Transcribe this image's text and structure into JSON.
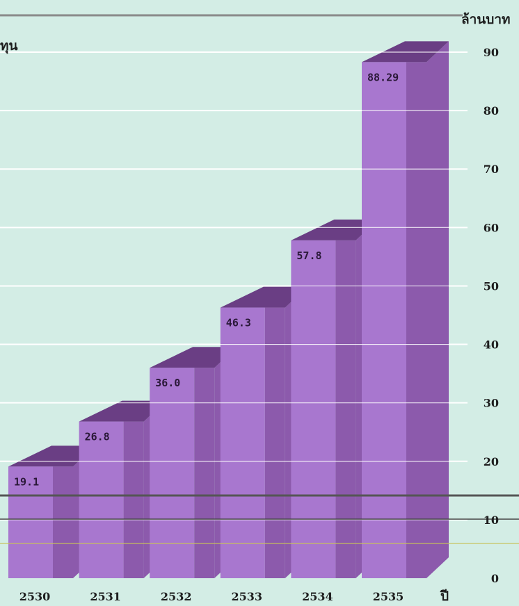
{
  "chart_data": {
    "type": "bar",
    "categories": [
      "2530",
      "2531",
      "2532",
      "2533",
      "2534",
      "2535"
    ],
    "values": [
      19.1,
      26.8,
      36.0,
      46.3,
      57.8,
      88.29
    ],
    "data_labels": [
      "19.1",
      "26.8",
      "36.0",
      "46.3",
      "57.8",
      "88.29"
    ],
    "title": "",
    "partial_title": "ทุน",
    "xlabel": "ปี",
    "ylabel": "ล้านบาท",
    "ylim": [
      0,
      90
    ],
    "yticks": [
      "0",
      "10",
      "20",
      "30",
      "40",
      "50",
      "60",
      "70",
      "80",
      "90"
    ],
    "grid": true,
    "three_d": true,
    "colors": {
      "bar_front": "#a877cf",
      "bar_side": "#8c5aac",
      "bar_top": "#6a3e84",
      "background": "#d3ede5",
      "grid": "#ffffff"
    }
  }
}
